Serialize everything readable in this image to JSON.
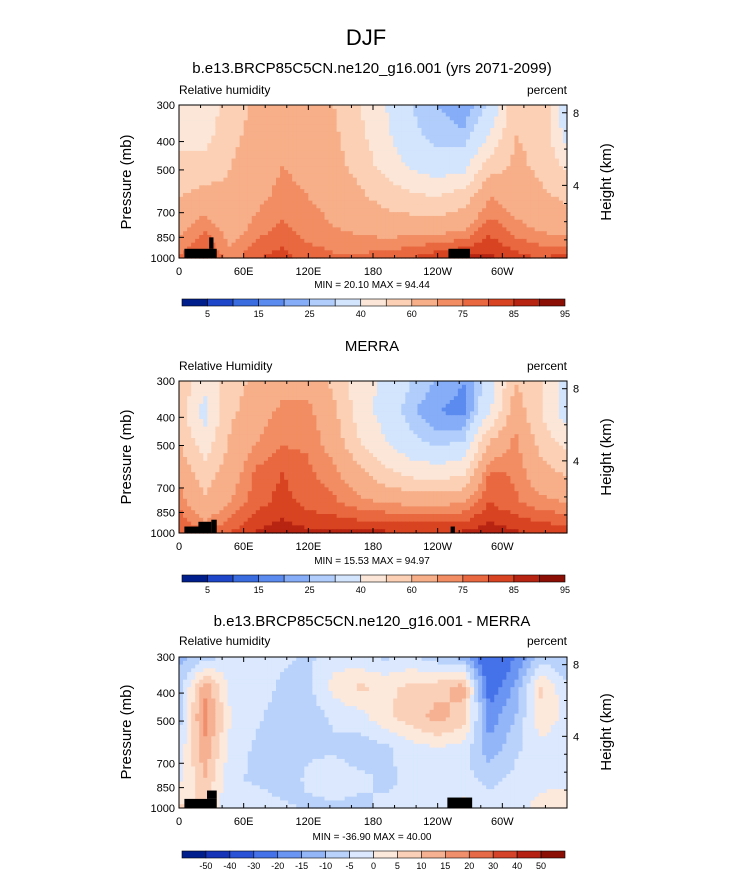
{
  "page": {
    "title": "DJF"
  },
  "panels": [
    {
      "title": "b.e13.BRCP85C5CN.ne120_g16.001 (yrs 2071-2099)",
      "left_label": "Relative humidity",
      "right_label": "percent",
      "y_label": "Pressure (mb)",
      "y2_label": "Height (km)",
      "stats": "MIN = 20.10 MAX = 94.44",
      "colorbar_labels": [
        "5",
        "15",
        "25",
        "40",
        "60",
        "75",
        "85",
        "95"
      ],
      "palette": [
        "#001f8c",
        "#1d46c9",
        "#3a6ce0",
        "#5c8bf0",
        "#86adf7",
        "#b0cdfb",
        "#d3e4fd",
        "#fbe6d8",
        "#fcd0b4",
        "#f7af89",
        "#f28d63",
        "#e9683f",
        "#d84421",
        "#b72411",
        "#8c0f06"
      ]
    },
    {
      "title": "MERRA",
      "left_label": "Relative Humidity",
      "right_label": "percent",
      "y_label": "Pressure (mb)",
      "y2_label": "Height (km)",
      "stats": "MIN = 15.53 MAX = 94.97",
      "colorbar_labels": [
        "5",
        "15",
        "25",
        "40",
        "60",
        "75",
        "85",
        "95"
      ],
      "palette": [
        "#001f8c",
        "#1d46c9",
        "#3a6ce0",
        "#5c8bf0",
        "#86adf7",
        "#b0cdfb",
        "#d3e4fd",
        "#fbe6d8",
        "#fcd0b4",
        "#f7af89",
        "#f28d63",
        "#e9683f",
        "#d84421",
        "#b72411",
        "#8c0f06"
      ]
    },
    {
      "title": "b.e13.BRCP85C5CN.ne120_g16.001 - MERRA",
      "left_label": "Relative humidity",
      "right_label": "percent",
      "y_label": "Pressure (mb)",
      "y2_label": "Height (km)",
      "stats": "MIN = -36.90 MAX = 40.00",
      "colorbar_labels": [
        "-50",
        "-40",
        "-30",
        "-20",
        "-15",
        "-10",
        "-5",
        "0",
        "5",
        "10",
        "15",
        "20",
        "30",
        "40",
        "50"
      ],
      "palette": [
        "#001f8c",
        "#1534b8",
        "#2a52d6",
        "#4572e8",
        "#6b95f2",
        "#93b6f8",
        "#b9d2fb",
        "#dbe8fd",
        "#fde8dc",
        "#fbd0b8",
        "#f6b193",
        "#f08f6c",
        "#e66a47",
        "#d4432a",
        "#b52214",
        "#8c0f06"
      ]
    }
  ],
  "chart_data": [
    {
      "type": "heatmap",
      "title": "b.e13.BRCP85C5CN.ne120_g16.001 (yrs 2071-2099)",
      "ylabel": "Pressure (mb)",
      "y2label": "Height (km)",
      "x_ticks": [
        "0",
        "60E",
        "120E",
        "180",
        "120W",
        "60W"
      ],
      "x_tick_lon": [
        0,
        60,
        120,
        180,
        240,
        300
      ],
      "xlim": [
        0,
        360
      ],
      "y_ticks": [
        300,
        400,
        500,
        700,
        850,
        1000
      ],
      "ylim": [
        300,
        1000
      ],
      "y2_ticks": [
        8,
        4
      ],
      "y_scale": "log",
      "units": "percent",
      "min": 20.1,
      "max": 94.44,
      "levels": [
        5,
        10,
        15,
        20,
        25,
        30,
        40,
        50,
        60,
        70,
        75,
        80,
        85,
        90,
        95
      ],
      "field": [
        [
          50,
          44,
          55,
          62,
          64,
          65,
          60,
          50,
          40,
          30,
          25,
          22,
          30,
          58,
          60,
          30
        ],
        [
          48,
          46,
          57,
          64,
          66,
          66,
          62,
          52,
          42,
          32,
          27,
          26,
          40,
          60,
          58,
          36
        ],
        [
          52,
          54,
          60,
          66,
          70,
          68,
          64,
          56,
          46,
          38,
          34,
          36,
          55,
          62,
          58,
          48
        ],
        [
          60,
          64,
          62,
          68,
          72,
          70,
          68,
          62,
          56,
          52,
          50,
          55,
          70,
          66,
          62,
          58
        ],
        [
          68,
          74,
          66,
          72,
          76,
          72,
          70,
          68,
          66,
          66,
          66,
          68,
          78,
          72,
          68,
          66
        ],
        [
          76,
          82,
          72,
          80,
          82,
          78,
          76,
          76,
          78,
          80,
          84,
          86,
          86,
          82,
          80,
          82
        ]
      ]
    },
    {
      "type": "heatmap",
      "title": "MERRA",
      "ylabel": "Pressure (mb)",
      "y2label": "Height (km)",
      "x_ticks": [
        "0",
        "60E",
        "120E",
        "180",
        "120W",
        "60W"
      ],
      "x_tick_lon": [
        0,
        60,
        120,
        180,
        240,
        300
      ],
      "xlim": [
        0,
        360
      ],
      "y_ticks": [
        300,
        400,
        500,
        700,
        850,
        1000
      ],
      "ylim": [
        300,
        1000
      ],
      "y2_ticks": [
        8,
        4
      ],
      "y_scale": "log",
      "units": "percent",
      "min": 15.53,
      "max": 94.97,
      "levels": [
        5,
        10,
        15,
        20,
        25,
        30,
        40,
        50,
        60,
        70,
        75,
        80,
        85,
        90,
        95
      ],
      "field": [
        [
          58,
          44,
          56,
          62,
          66,
          66,
          58,
          44,
          38,
          30,
          24,
          20,
          34,
          60,
          52,
          36
        ],
        [
          54,
          36,
          58,
          66,
          72,
          72,
          62,
          44,
          36,
          26,
          20,
          18,
          38,
          66,
          50,
          34
        ],
        [
          60,
          44,
          62,
          70,
          74,
          74,
          66,
          50,
          40,
          32,
          28,
          30,
          60,
          72,
          56,
          46
        ],
        [
          68,
          54,
          66,
          76,
          80,
          76,
          72,
          62,
          52,
          46,
          44,
          48,
          76,
          74,
          64,
          58
        ],
        [
          74,
          62,
          70,
          78,
          82,
          78,
          76,
          72,
          70,
          68,
          68,
          70,
          80,
          76,
          72,
          70
        ],
        [
          80,
          76,
          80,
          86,
          88,
          86,
          86,
          86,
          86,
          86,
          86,
          86,
          88,
          86,
          84,
          84
        ]
      ]
    },
    {
      "type": "heatmap",
      "title": "b.e13.BRCP85C5CN.ne120_g16.001 - MERRA",
      "ylabel": "Pressure (mb)",
      "y2label": "Height (km)",
      "x_ticks": [
        "0",
        "60E",
        "120E",
        "180",
        "120W",
        "60W"
      ],
      "x_tick_lon": [
        0,
        60,
        120,
        180,
        240,
        300
      ],
      "xlim": [
        0,
        360
      ],
      "y_ticks": [
        300,
        400,
        500,
        700,
        850,
        1000
      ],
      "ylim": [
        300,
        1000
      ],
      "y2_ticks": [
        8,
        4
      ],
      "y_scale": "log",
      "units": "percent",
      "min": -36.9,
      "max": 40.0,
      "levels": [
        -50,
        -40,
        -30,
        -20,
        -15,
        -10,
        -5,
        0,
        5,
        10,
        15,
        20,
        30,
        40,
        50
      ],
      "field": [
        [
          -12,
          -8,
          -2,
          -2,
          -4,
          -6,
          -2,
          -4,
          -6,
          -4,
          -8,
          -12,
          -30,
          -20,
          -8,
          -10
        ],
        [
          -8,
          14,
          -2,
          -2,
          -6,
          -6,
          2,
          6,
          4,
          6,
          8,
          12,
          -24,
          -14,
          6,
          -4
        ],
        [
          -8,
          18,
          0,
          -4,
          -8,
          -8,
          -4,
          -2,
          4,
          8,
          12,
          8,
          -18,
          -10,
          4,
          -2
        ],
        [
          -4,
          14,
          -2,
          -6,
          -10,
          -6,
          -6,
          -8,
          -6,
          -2,
          0,
          -2,
          -14,
          -6,
          -2,
          -4
        ],
        [
          -2,
          10,
          -4,
          -6,
          -8,
          -4,
          -2,
          -4,
          -6,
          -4,
          -4,
          -4,
          -6,
          -4,
          -2,
          -2
        ],
        [
          6,
          4,
          -4,
          -2,
          -4,
          -6,
          -6,
          -6,
          -4,
          -4,
          -2,
          2,
          -4,
          -2,
          2,
          4
        ]
      ]
    }
  ]
}
